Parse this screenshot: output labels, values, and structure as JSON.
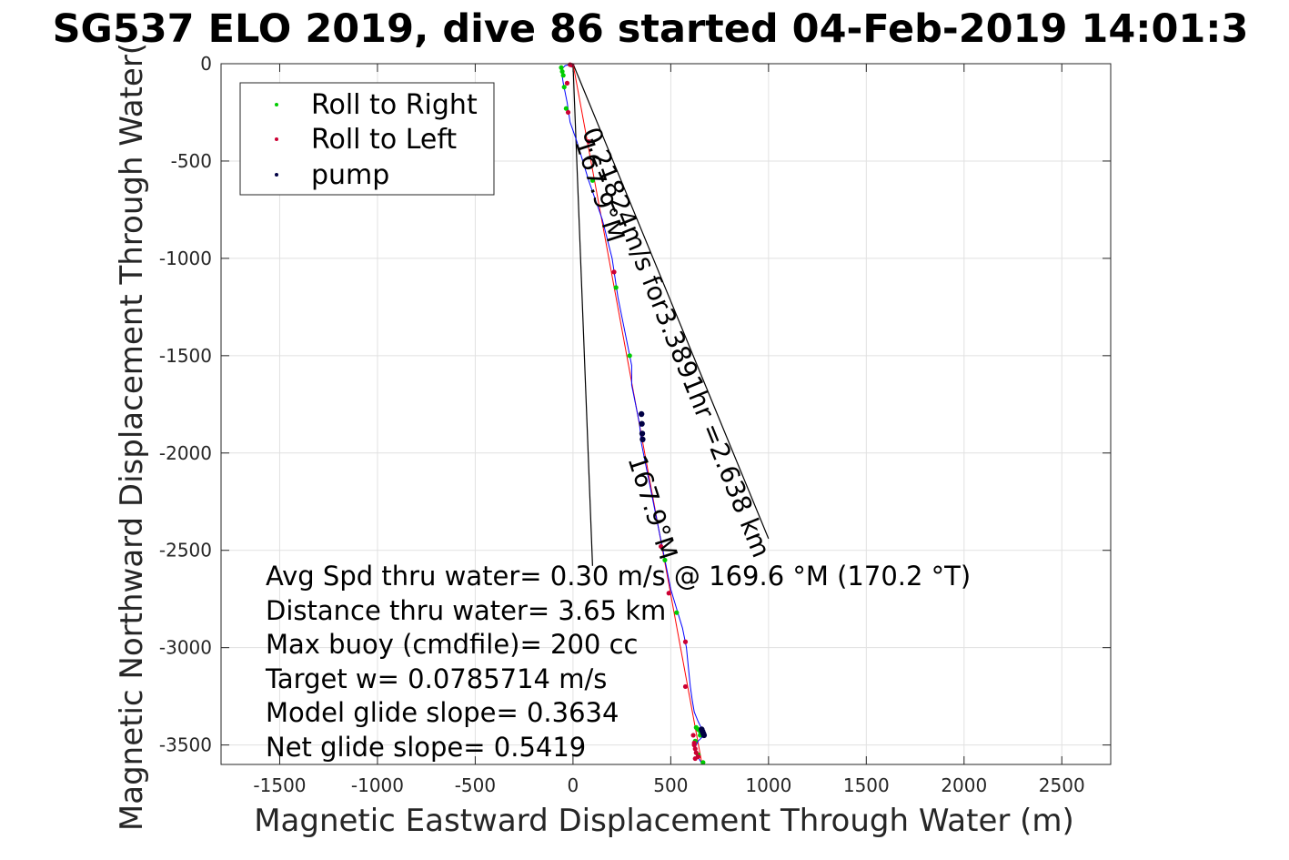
{
  "chart_data": {
    "type": "line",
    "title": "SG537 ELO 2019, dive 86 started 04-Feb-2019 14:01:3",
    "xlabel": "Magnetic Eastward Displacement Through Water (m)",
    "ylabel": "Magnetic Northward Displacement Through Water(",
    "xlim": [
      -1800,
      2750
    ],
    "ylim": [
      -3600,
      0
    ],
    "xticks": [
      "-1500",
      "-1000",
      "-500",
      "0",
      "500",
      "1000",
      "1500",
      "2000",
      "2500"
    ],
    "xtick_values": [
      -1500,
      -1000,
      -500,
      0,
      500,
      1000,
      1500,
      2000,
      2500
    ],
    "yticks": [
      "0",
      "-500",
      "-1000",
      "-1500",
      "-2000",
      "-2500",
      "-3000",
      "-3500"
    ],
    "ytick_values": [
      0,
      -500,
      -1000,
      -1500,
      -2000,
      -2500,
      -3000,
      -3500
    ],
    "grid": true,
    "legend_position": "top-left",
    "legend": [
      "Roll to Right",
      "Roll to Left",
      "pump"
    ],
    "colors": {
      "track": "#0000ff",
      "roll_right": "#00cc00",
      "roll_left": "#cc0033",
      "pump": "#000044",
      "net": "#ff0000",
      "lines": "#000000",
      "grid": "#e1e1e1"
    },
    "series": [
      {
        "kind": "track",
        "x": [
          0,
          -40,
          -60,
          -50,
          -30,
          -15,
          20,
          80,
          150,
          200,
          230,
          260,
          280,
          300,
          300,
          320,
          340,
          350,
          370,
          400,
          430,
          460,
          480,
          500,
          530,
          560,
          580,
          590,
          600,
          610,
          620,
          640,
          660,
          660,
          640,
          620,
          630,
          650,
          660
        ],
        "y": [
          0,
          -10,
          -30,
          -100,
          -200,
          -300,
          -400,
          -600,
          -800,
          -1000,
          -1200,
          -1350,
          -1450,
          -1550,
          -1650,
          -1750,
          -1850,
          -1950,
          -2050,
          -2200,
          -2350,
          -2500,
          -2600,
          -2700,
          -2800,
          -2900,
          -3000,
          -3100,
          -3200,
          -3270,
          -3330,
          -3380,
          -3420,
          -3460,
          -3480,
          -3520,
          -3550,
          -3580,
          -3600
        ]
      },
      {
        "name": "Roll to Right",
        "x": [
          -60,
          -55,
          -50,
          -45,
          -35,
          100,
          220,
          290,
          470,
          530,
          630,
          640,
          650,
          660,
          650,
          625,
          640,
          665
        ],
        "y": [
          -20,
          -40,
          -60,
          -120,
          -230,
          -600,
          -1150,
          -1500,
          -2550,
          -2820,
          -3410,
          -3420,
          -3430,
          -3440,
          -3450,
          -3480,
          -3550,
          -3590
        ]
      },
      {
        "name": "Roll to Left",
        "x": [
          -15,
          -5,
          -30,
          -25,
          80,
          210,
          450,
          490,
          575,
          575,
          615,
          620,
          625,
          630,
          640,
          625,
          620
        ],
        "y": [
          -5,
          -8,
          -100,
          -250,
          -400,
          -1070,
          -2480,
          -2720,
          -2970,
          -3200,
          -3450,
          -3490,
          -3520,
          -3540,
          -3560,
          -3570,
          -3500
        ]
      },
      {
        "name": "pump",
        "x": [
          350,
          352,
          354,
          356,
          658,
          662,
          666,
          670
        ],
        "y": [
          -1800,
          -1850,
          -1900,
          -1930,
          -3420,
          -3430,
          -3440,
          -3450
        ]
      }
    ],
    "net_line": {
      "x": [
        0,
        660
      ],
      "y": [
        0,
        -3600
      ]
    },
    "wedge_lines": [
      {
        "x": [
          0,
          100
        ],
        "y": [
          0,
          -2580
        ]
      },
      {
        "x": [
          0,
          1000
        ],
        "y": [
          0,
          -2440
        ]
      }
    ],
    "annotations": [
      {
        "text": "0.21824m/s for3.3891hr =2.638 km",
        "x": 45,
        "y": -350,
        "rotation": 68
      },
      {
        "text": "167.9°M",
        "x": 10,
        "y": -400,
        "rotation": 72
      },
      {
        "text": "167.9°M",
        "x": 280,
        "y": -2030,
        "rotation": 72
      }
    ],
    "info_lines": [
      "Avg Spd thru water=  0.30 m/s @ 169.6 °M (170.2 °T)",
      "Distance thru water=  3.65 km",
      "Max buoy (cmdfile)= 200 cc",
      "Target w= 0.0785714 m/s",
      "Model glide slope= 0.3634",
      "Net glide slope= 0.5419"
    ]
  }
}
